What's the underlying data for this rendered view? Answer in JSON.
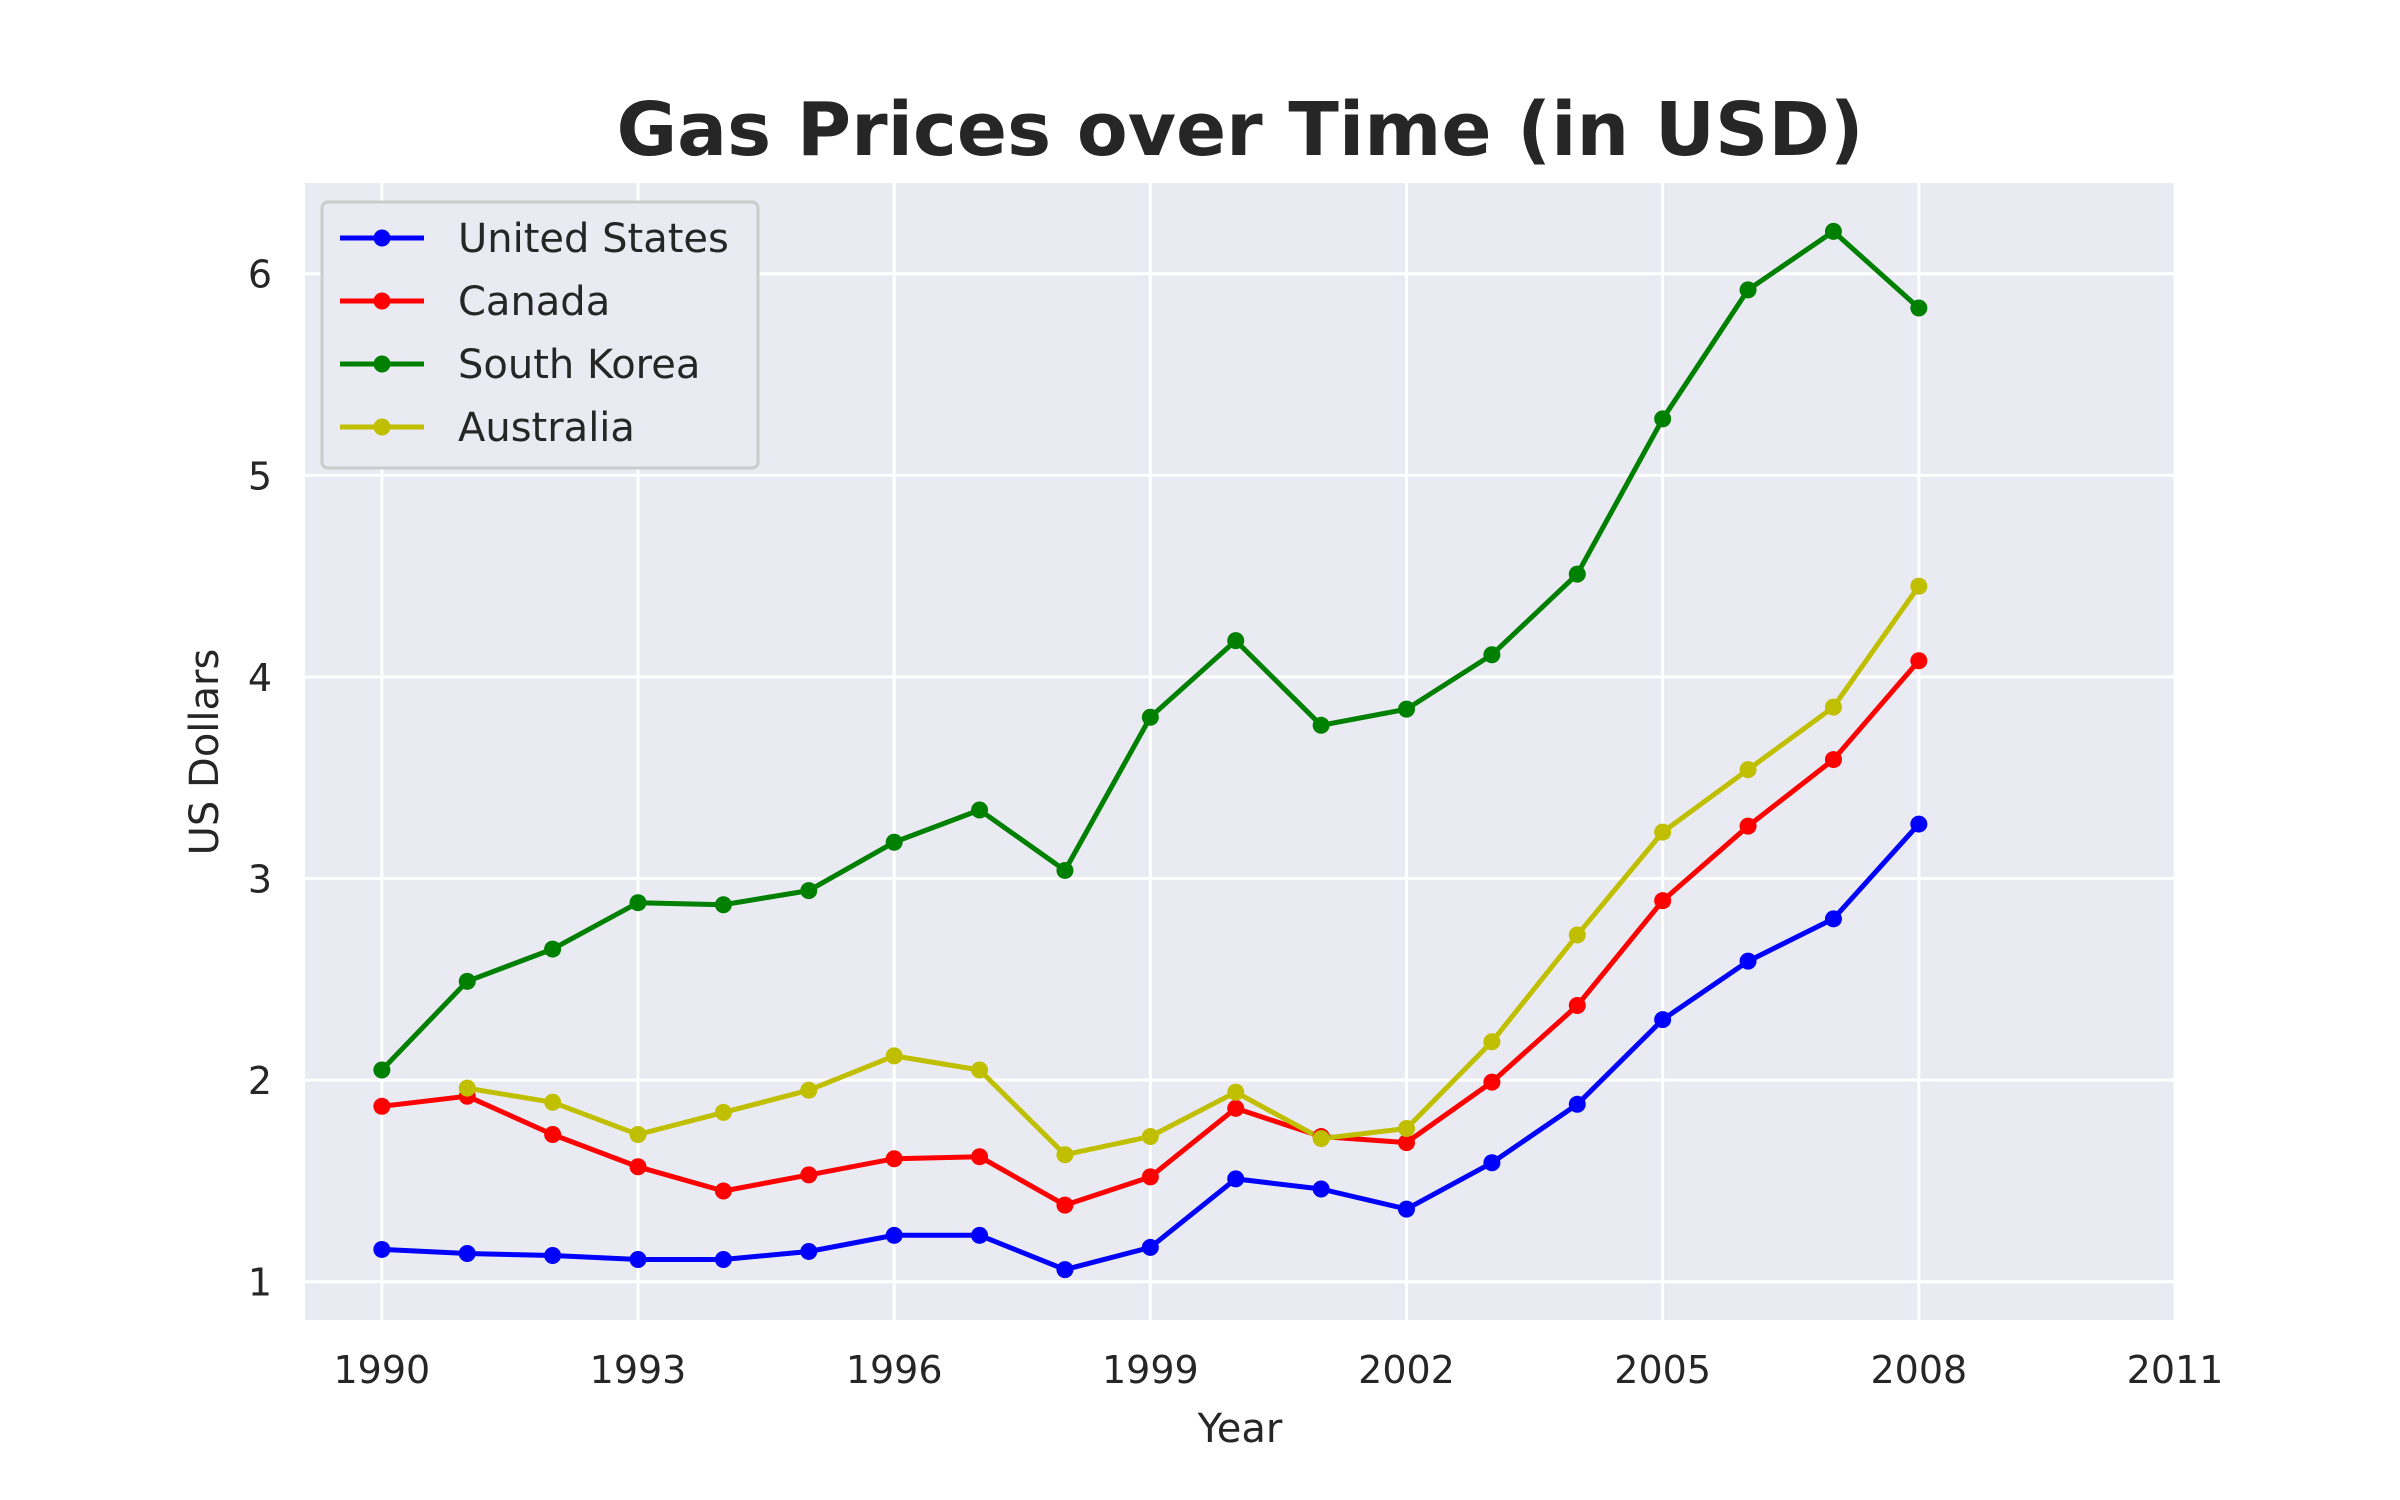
{
  "chart_data": {
    "type": "line",
    "title": "Gas Prices over Time (in USD)",
    "xlabel": "Year",
    "ylabel": "US Dollars",
    "x": [
      1990,
      1991,
      1992,
      1993,
      1994,
      1995,
      1996,
      1997,
      1998,
      1999,
      2000,
      2001,
      2002,
      2003,
      2004,
      2005,
      2006,
      2007,
      2008
    ],
    "xlim": [
      1989.1,
      2011
    ],
    "ylim": [
      0.81,
      6.45
    ],
    "xticks": [
      1990,
      1993,
      1996,
      1999,
      2002,
      2005,
      2008,
      2011
    ],
    "xtick_labels": [
      "1990",
      "1993",
      "1996",
      "1999",
      "2002",
      "2005",
      "2008",
      "2011"
    ],
    "yticks": [
      1,
      2,
      3,
      4,
      5,
      6
    ],
    "ytick_labels": [
      "1",
      "2",
      "3",
      "4",
      "5",
      "6"
    ],
    "grid": true,
    "legend_position": "top-left",
    "series": [
      {
        "name": "United States",
        "color": "#0000ff",
        "values": [
          1.16,
          1.14,
          1.13,
          1.11,
          1.11,
          1.15,
          1.23,
          1.23,
          1.06,
          1.17,
          1.51,
          1.46,
          1.36,
          1.59,
          1.88,
          2.3,
          2.59,
          2.8,
          3.27
        ]
      },
      {
        "name": "Canada",
        "color": "#ff0000",
        "values": [
          1.87,
          1.92,
          1.73,
          1.57,
          1.45,
          1.53,
          1.61,
          1.62,
          1.38,
          1.52,
          1.86,
          1.72,
          1.69,
          1.99,
          2.37,
          2.89,
          3.26,
          3.59,
          4.08
        ]
      },
      {
        "name": "South Korea",
        "color": "#008000",
        "values": [
          2.05,
          2.49,
          2.65,
          2.88,
          2.87,
          2.94,
          3.18,
          3.34,
          3.04,
          3.8,
          4.18,
          3.76,
          3.84,
          4.11,
          4.51,
          5.28,
          5.92,
          6.21,
          5.83
        ]
      },
      {
        "name": "Australia",
        "color": "#bfbf00",
        "values": [
          null,
          1.96,
          1.89,
          1.73,
          1.84,
          1.95,
          2.12,
          2.05,
          1.63,
          1.72,
          1.94,
          1.71,
          1.76,
          2.19,
          2.72,
          3.23,
          3.54,
          3.85,
          4.45
        ]
      }
    ]
  }
}
